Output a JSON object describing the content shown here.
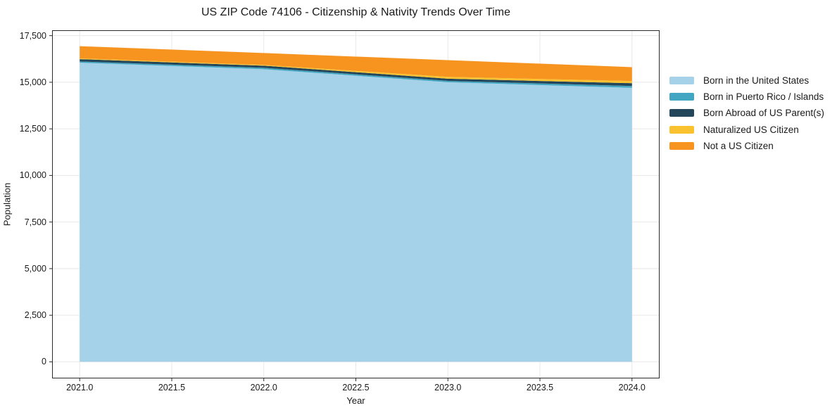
{
  "figure": {
    "title": "US ZIP Code 74106 - Citizenship & Nativity Trends Over Time",
    "xlabel": "Year",
    "ylabel": "Population"
  },
  "axes": {
    "x_tick_labels": [
      "2021.0",
      "2021.5",
      "2022.0",
      "2022.5",
      "2023.0",
      "2023.5",
      "2024.0"
    ],
    "x_tick_values": [
      2021.0,
      2021.5,
      2022.0,
      2022.5,
      2023.0,
      2023.5,
      2024.0
    ],
    "y_tick_labels": [
      "0",
      "2,500",
      "5,000",
      "7,500",
      "10,000",
      "12,500",
      "15,000",
      "17,500"
    ],
    "y_tick_values": [
      0,
      2500,
      5000,
      7500,
      10000,
      12500,
      15000,
      17500
    ],
    "xlim": [
      2020.85,
      2024.15
    ],
    "ylim": [
      -890,
      17790
    ]
  },
  "legend": {
    "position": "right-outside"
  },
  "colors": {
    "grid": "#e8e8e8",
    "spine": "#2b2b2b",
    "tick": "#2b2b2b",
    "text": "#1a1a1a"
  },
  "chart_data": {
    "type": "area",
    "stacked": true,
    "title": "US ZIP Code 74106 - Citizenship & Nativity Trends Over Time",
    "xlabel": "Year",
    "ylabel": "Population",
    "x": [
      2021,
      2022,
      2023,
      2024
    ],
    "series": [
      {
        "name": "Born in the United States",
        "color": "#a5d2e8",
        "values": [
          16050,
          15700,
          15000,
          14700
        ]
      },
      {
        "name": "Born in Puerto Rico / Islands",
        "color": "#42a6c2",
        "values": [
          65,
          75,
          75,
          100
        ]
      },
      {
        "name": "Born Abroad of US Parent(s)",
        "color": "#24465a",
        "values": [
          125,
          115,
          115,
          150
        ]
      },
      {
        "name": "Naturalized US Citizen",
        "color": "#fbc230",
        "values": [
          40,
          40,
          100,
          115
        ]
      },
      {
        "name": "Not a US Citizen",
        "color": "#f6941f",
        "values": [
          655,
          640,
          895,
          745
        ]
      }
    ],
    "totals": [
      16935,
      16570,
      16185,
      15810
    ],
    "xlim": [
      2020.85,
      2024.15
    ],
    "ylim": [
      -890,
      17790
    ],
    "grid": true,
    "legend_position": "right-outside"
  }
}
